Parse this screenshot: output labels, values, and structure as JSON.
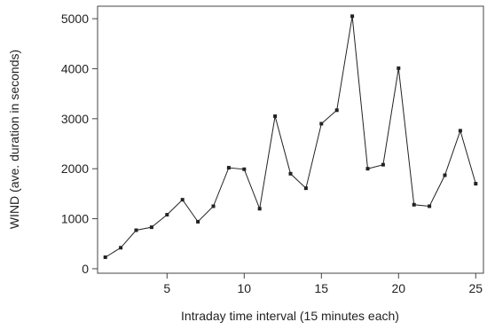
{
  "chart_data": {
    "type": "line",
    "title": "",
    "xlabel": "Intraday time interval (15 minutes each)",
    "ylabel": "WIND (ave. duration in seconds)",
    "xlim": [
      0.5,
      25.5
    ],
    "ylim": [
      -90,
      5250
    ],
    "x_ticks": [
      5,
      10,
      15,
      20,
      25
    ],
    "y_ticks": [
      0,
      1000,
      2000,
      3000,
      4000,
      5000
    ],
    "grid": false,
    "legend": "none",
    "series": [
      {
        "x": [
          1,
          2,
          3,
          4,
          5,
          6,
          7,
          8,
          9,
          10,
          11,
          12,
          13,
          14,
          15,
          16,
          17,
          18,
          19,
          20,
          21,
          22,
          23,
          24,
          25
        ],
        "values": [
          230,
          420,
          770,
          830,
          1080,
          1380,
          940,
          1250,
          2020,
          1990,
          1200,
          3050,
          1900,
          1610,
          2900,
          3170,
          5050,
          2000,
          2080,
          4010,
          1280,
          1250,
          1870,
          2760,
          1700
        ]
      }
    ],
    "colors": {
      "line": "#222222",
      "marker": "#222222",
      "axis": "#444444"
    }
  }
}
